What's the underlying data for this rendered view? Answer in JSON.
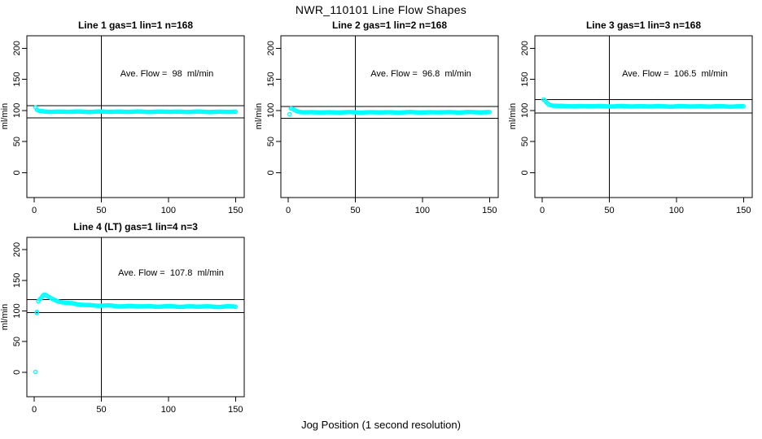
{
  "chart_data": {
    "type": "scatter",
    "title": "NWR_110101  Line Flow Shapes",
    "xlabel": "Jog Position (1 second resolution)",
    "ylabel": "ml/min",
    "x_ticks": [
      0,
      50,
      100,
      150
    ],
    "y_ticks": [
      0,
      50,
      100,
      150,
      200
    ],
    "xlim": [
      -5.5,
      156.5
    ],
    "ylim": [
      -40,
      220
    ],
    "grid": false,
    "point_color": "#00FFFF",
    "line_color": "#000000",
    "panels": [
      {
        "title": "Line 1 gas=1 lin=1 n=168",
        "annotation": "Ave. Flow =  98  ml/min",
        "ave_flow": 98,
        "n": 168,
        "vline_x": 50,
        "hlines": [
          107.8,
          88.2
        ],
        "outliers": [
          [
            1,
            105
          ]
        ],
        "band_keypoints": [
          [
            2,
            101
          ],
          [
            3,
            99.5
          ],
          [
            4,
            99
          ],
          [
            6,
            98.4
          ],
          [
            10,
            98
          ],
          [
            80,
            98
          ],
          [
            150,
            97.8
          ]
        ],
        "x_step": 1,
        "noise_amp": 0.45
      },
      {
        "title": "Line 2 gas=1 lin=2 n=168",
        "annotation": "Ave. Flow =  96.8  ml/min",
        "ave_flow": 96.8,
        "n": 168,
        "vline_x": 50,
        "hlines": [
          106.48,
          87.12
        ],
        "outliers": [
          [
            1,
            94
          ]
        ],
        "band_keypoints": [
          [
            2,
            103
          ],
          [
            3,
            102.5
          ],
          [
            4,
            101.5
          ],
          [
            6,
            99.5
          ],
          [
            8,
            98.2
          ],
          [
            11,
            97.3
          ],
          [
            15,
            97
          ],
          [
            80,
            97
          ],
          [
            150,
            97.2
          ]
        ],
        "x_step": 1,
        "noise_amp": 0.45
      },
      {
        "title": "Line 3 gas=1 lin=3 n=168",
        "annotation": "Ave. Flow =  106.5  ml/min",
        "ave_flow": 106.5,
        "n": 168,
        "vline_x": 50,
        "hlines": [
          117.15,
          95.85
        ],
        "outliers": [],
        "band_keypoints": [
          [
            1,
            117.5
          ],
          [
            2,
            116
          ],
          [
            3,
            113.5
          ],
          [
            4,
            111.5
          ],
          [
            5,
            110
          ],
          [
            6,
            109
          ],
          [
            8,
            107.8
          ],
          [
            12,
            107
          ],
          [
            40,
            106.8
          ],
          [
            100,
            106.6
          ],
          [
            150,
            106.5
          ]
        ],
        "x_step": 1,
        "noise_amp": 0.5
      },
      {
        "title": "Line 4 (LT) gas=1 lin=4 n=3",
        "annotation": "Ave. Flow =  107.8  ml/min",
        "ave_flow": 107.8,
        "n": 3,
        "vline_x": 50,
        "hlines": [
          118.58,
          97.02
        ],
        "outliers": [
          [
            1,
            0.5
          ],
          [
            2,
            96.5
          ],
          [
            2,
            98.5
          ]
        ],
        "band_keypoints": [
          [
            3,
            116
          ],
          [
            4,
            119
          ],
          [
            5,
            121
          ],
          [
            6,
            123.5
          ],
          [
            7,
            126
          ],
          [
            8,
            126.5
          ],
          [
            9,
            125
          ],
          [
            10,
            123.5
          ],
          [
            12,
            121
          ],
          [
            14,
            119
          ],
          [
            16,
            117.5
          ],
          [
            18,
            116
          ],
          [
            20,
            115
          ],
          [
            23,
            113.5
          ],
          [
            26,
            112.5
          ],
          [
            30,
            111.5
          ],
          [
            35,
            110.3
          ],
          [
            40,
            109.5
          ],
          [
            45,
            109
          ],
          [
            50,
            108.7
          ],
          [
            60,
            108.2
          ],
          [
            70,
            107.8
          ],
          [
            85,
            107.5
          ],
          [
            100,
            107.3
          ],
          [
            120,
            107.2
          ],
          [
            150,
            107
          ]
        ],
        "x_step": 1,
        "noise_amp": 0.8
      }
    ]
  }
}
